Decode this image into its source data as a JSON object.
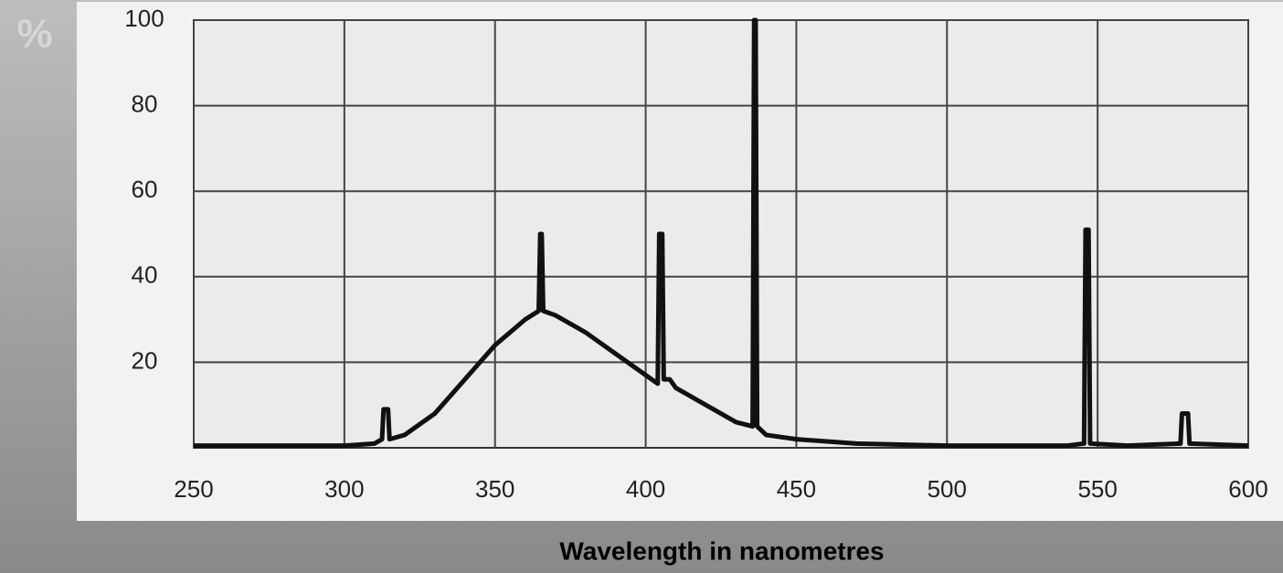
{
  "chart_data": {
    "type": "line",
    "x_label": "Wavelength in nanometres",
    "y_label": "%",
    "x": [
      250,
      300,
      310,
      312.5,
      313,
      314.5,
      315,
      320,
      330,
      340,
      350,
      360,
      364.5,
      365,
      365.5,
      366,
      370,
      380,
      390,
      400,
      404,
      404.5,
      405.5,
      406,
      408,
      410,
      420,
      430,
      435.5,
      436,
      436.5,
      437,
      440,
      450,
      470,
      500,
      540,
      545.5,
      546,
      547,
      547.5,
      560,
      577.5,
      578,
      580,
      580.5,
      600
    ],
    "values": [
      0.5,
      0.5,
      1,
      2,
      9,
      9,
      2,
      3,
      8,
      16,
      24,
      30,
      32,
      50,
      50,
      32,
      31,
      27,
      22,
      17,
      15,
      50,
      50,
      16,
      16,
      14,
      10,
      6,
      5,
      100,
      100,
      5,
      3,
      2,
      1,
      0.5,
      0.5,
      1,
      51,
      51,
      1,
      0.5,
      1,
      8,
      8,
      1,
      0.5
    ],
    "color": "#111111",
    "xlim": [
      250,
      600
    ],
    "xticks": [
      250,
      300,
      350,
      400,
      450,
      500,
      550,
      600
    ],
    "ylim": [
      0,
      100
    ],
    "yticks": [
      20,
      40,
      60,
      80,
      100
    ],
    "grid": true
  }
}
